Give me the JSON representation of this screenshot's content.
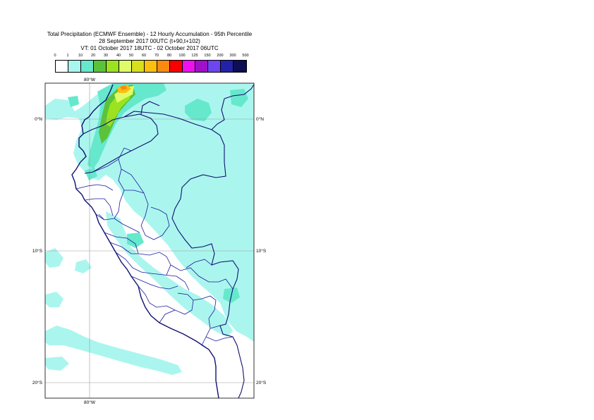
{
  "title": {
    "line1": "Total Precipitation (ECMWF Ensemble) - 12 Hourly Accumulation - 95th Percentile",
    "line2": "28 September 2017 00UTC (t+90,t+102)",
    "line3": "VT: 01 October 2017 18UTC - 02 October 2017 06UTC"
  },
  "legend": {
    "labels": [
      "0",
      "1",
      "10",
      "20",
      "30",
      "40",
      "50",
      "60",
      "70",
      "80",
      "100",
      "125",
      "150",
      "200",
      "300",
      "500"
    ],
    "colors": [
      "#ffffff",
      "#aaf6ee",
      "#66e8cc",
      "#5cc23a",
      "#9ae31e",
      "#e0fb6a",
      "#d8df1c",
      "#fbbf10",
      "#fb8a10",
      "#fb0000",
      "#ee10ee",
      "#a010c8",
      "#6e46f0",
      "#2222a8",
      "#0e0e55"
    ]
  },
  "axes": {
    "lon_top": "80°W",
    "lon_bottom": "80°W",
    "lat_left": [
      "0°N",
      "10°S",
      "20°S"
    ],
    "lat_right": [
      "0°N",
      "10°S",
      "20°S"
    ]
  },
  "colors": {
    "light_cyan": "#aaf6ee",
    "medium_cyan": "#66e8cc",
    "green": "#5cc23a",
    "lime": "#9ae31e",
    "yellow": "#e0fb6a",
    "orange": "#fbbf10",
    "dark_orange": "#fb8a10",
    "boundary_blue": "#1a1a9e",
    "coast_navy": "#101070"
  }
}
